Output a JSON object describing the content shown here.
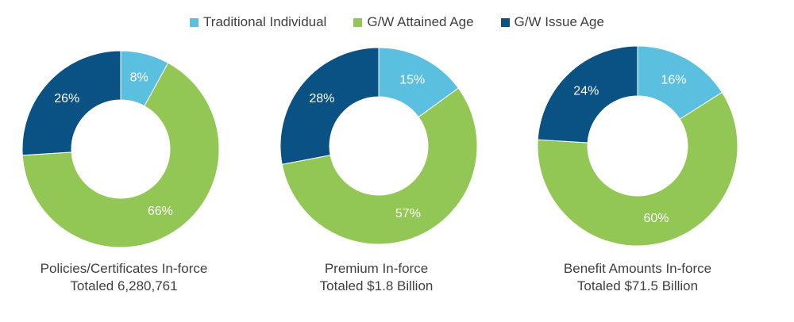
{
  "legend": [
    {
      "label": "Traditional Individual",
      "color": "#5bc0e0"
    },
    {
      "label": "G/W Attained Age",
      "color": "#92c755"
    },
    {
      "label": "G/W Issue Age",
      "color": "#0a5283"
    }
  ],
  "chart_data": [
    {
      "type": "pie",
      "donut": true,
      "categories": [
        "Traditional Individual",
        "G/W Attained Age",
        "G/W Issue Age"
      ],
      "values": [
        8,
        66,
        26
      ],
      "labels": [
        "8%",
        "66%",
        "26%"
      ],
      "title_line1": "Policies/Certificates In-force",
      "title_line2": "Totaled 6,280,761",
      "colors": [
        "#5bc0e0",
        "#92c755",
        "#0a5283"
      ],
      "legend_position": "top"
    },
    {
      "type": "pie",
      "donut": true,
      "categories": [
        "Traditional Individual",
        "G/W Attained Age",
        "G/W Issue Age"
      ],
      "values": [
        15,
        57,
        28
      ],
      "labels": [
        "15%",
        "57%",
        "28%"
      ],
      "title_line1": "Premium In-force",
      "title_line2": "Totaled $1.8 Billion",
      "colors": [
        "#5bc0e0",
        "#92c755",
        "#0a5283"
      ],
      "legend_position": "top"
    },
    {
      "type": "pie",
      "donut": true,
      "categories": [
        "Traditional Individual",
        "G/W Attained Age",
        "G/W Issue Age"
      ],
      "values": [
        16,
        60,
        24
      ],
      "labels": [
        "16%",
        "60%",
        "24%"
      ],
      "title_line1": "Benefit Amounts In-force",
      "title_line2": "Totaled $71.5 Billion",
      "colors": [
        "#5bc0e0",
        "#92c755",
        "#0a5283"
      ],
      "legend_position": "top"
    }
  ]
}
